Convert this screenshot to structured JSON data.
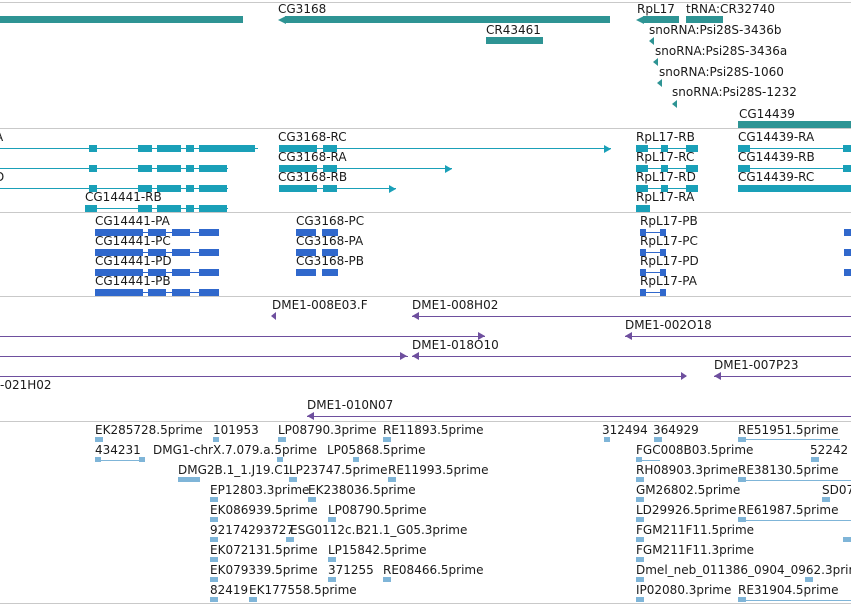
{
  "colors": {
    "gene": "#2e9494",
    "transcript": "#1aa0b8",
    "protein": "#3068cc",
    "clone": "#6e4f9e",
    "est": "#7fb5d8",
    "separator": "#c9c9c9",
    "text": "#1a1a1a"
  },
  "tracks": {
    "genes": [
      {
        "label": "CG3168",
        "icon": "gene-arrow-left",
        "bar": "cg3168"
      },
      {
        "label": "CR43461",
        "icon": "",
        "bar": "cr43461"
      },
      {
        "label": "RpL17",
        "icon": "gene-arrow-left",
        "bar": "rpl17"
      },
      {
        "label": "tRNA:CR32740",
        "icon": "",
        "bar": "trna"
      },
      {
        "label": "snoRNA:Psi28S-3436b",
        "icon": "",
        "bar": ""
      },
      {
        "label": "snoRNA:Psi28S-3436a",
        "icon": "",
        "bar": ""
      },
      {
        "label": "snoRNA:Psi28S-1060",
        "icon": "",
        "bar": ""
      },
      {
        "label": "snoRNA:Psi28S-1232",
        "icon": "",
        "bar": ""
      },
      {
        "label": "CG14439",
        "icon": "",
        "bar": "cg14439"
      }
    ],
    "transcripts": [
      {
        "label": "CG3168-RC"
      },
      {
        "label": "CG3168-RA"
      },
      {
        "label": "CG3168-RB"
      },
      {
        "label": "CG14441-RB"
      },
      {
        "label": "RpL17-RB"
      },
      {
        "label": "RpL17-RC"
      },
      {
        "label": "RpL17-RD"
      },
      {
        "label": "RpL17-RA"
      },
      {
        "label": "CG14439-RA"
      },
      {
        "label": "CG14439-RB"
      },
      {
        "label": "CG14439-RC"
      }
    ],
    "proteins": [
      {
        "label": "CG14441-PA"
      },
      {
        "label": "CG14441-PC"
      },
      {
        "label": "CG14441-PD"
      },
      {
        "label": "CG14441-PB"
      },
      {
        "label": "CG3168-PC"
      },
      {
        "label": "CG3168-PA"
      },
      {
        "label": "CG3168-PB"
      },
      {
        "label": "RpL17-PB"
      },
      {
        "label": "RpL17-PC"
      },
      {
        "label": "RpL17-PD"
      },
      {
        "label": "RpL17-PA"
      }
    ],
    "clones": [
      {
        "label": "DME1-008E03.F"
      },
      {
        "label": "DME1-008H02"
      },
      {
        "label": "DME1-002O18"
      },
      {
        "label": "DME1-018O10"
      },
      {
        "label": "DME1-007P23"
      },
      {
        "label": "-021H02"
      },
      {
        "label": "DME1-010N07"
      }
    ],
    "ests": [
      {
        "label": "EK285728.5prime"
      },
      {
        "label": "101953"
      },
      {
        "label": "LP08790.3prime"
      },
      {
        "label": "RE11893.5prime"
      },
      {
        "label": "312494"
      },
      {
        "label": "364929"
      },
      {
        "label": "RE51951.5prime"
      },
      {
        "label": "434231"
      },
      {
        "label": "DMG1-chrX.7.079.a.5prime"
      },
      {
        "label": "LP05868.5prime"
      },
      {
        "label": "FGC008B03.5prime"
      },
      {
        "label": "52242"
      },
      {
        "label": "DMG2B.1_1.J19.C1"
      },
      {
        "label": "LP23747.5prime"
      },
      {
        "label": "RE11993.5prime"
      },
      {
        "label": "RH08903.3prime"
      },
      {
        "label": "RE38130.5prime"
      },
      {
        "label": "EP12803.3prime"
      },
      {
        "label": "EK238036.5prime"
      },
      {
        "label": "GM26802.5prime"
      },
      {
        "label": "SD07"
      },
      {
        "label": "EK086939.5prime"
      },
      {
        "label": "LP08790.5prime"
      },
      {
        "label": "LD29926.5prime"
      },
      {
        "label": "RE61987.5prime"
      },
      {
        "label": "92174293727"
      },
      {
        "label": "ESG0112c.B21.1_G05.3prime"
      },
      {
        "label": "FGM211F11.5prime"
      },
      {
        "label": "EK072131.5prime"
      },
      {
        "label": "LP15842.5prime"
      },
      {
        "label": "FGM211F11.3prime"
      },
      {
        "label": "EK079339.5prime"
      },
      {
        "label": "371255"
      },
      {
        "label": "RE08466.5prime"
      },
      {
        "label": "Dmel_neb_011386_0904_0962.3prime"
      },
      {
        "label": "82419"
      },
      {
        "label": "EK177558.5prime"
      },
      {
        "label": "IP02080.3prime"
      },
      {
        "label": "RE31904.5prime"
      }
    ]
  }
}
